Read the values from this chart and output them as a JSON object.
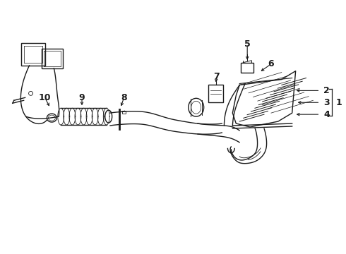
{
  "background_color": "#ffffff",
  "line_color": "#1a1a1a",
  "fig_width": 4.9,
  "fig_height": 3.6,
  "dpi": 100,
  "label_fontsize": 9,
  "label_fontweight": "bold"
}
